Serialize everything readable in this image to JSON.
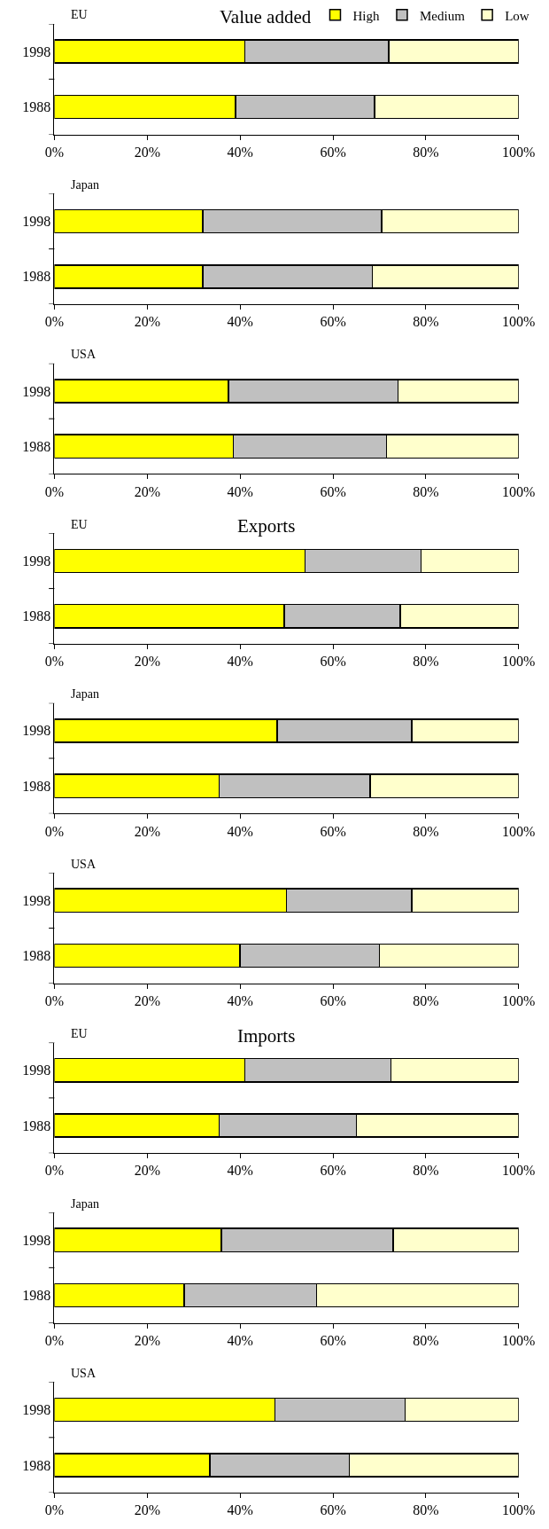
{
  "chart_data": [
    {
      "type": "bar",
      "orientation": "horizontal",
      "stacked": true,
      "title": "Value added",
      "subtitle": "EU",
      "categories": [
        "1998",
        "1988"
      ],
      "legend": "top right",
      "xlim": [
        0,
        100
      ],
      "xticks": [
        {
          "value": 0,
          "label": "0%"
        },
        {
          "value": 20,
          "label": "20%"
        },
        {
          "value": 40,
          "label": "40%"
        },
        {
          "value": 60,
          "label": "60%"
        },
        {
          "value": 80,
          "label": "80%"
        },
        {
          "value": 100,
          "label": "100%"
        }
      ],
      "series": [
        {
          "name": "High",
          "color": "#ffff00",
          "values": [
            41,
            39
          ]
        },
        {
          "name": "Medium",
          "color": "#c0c0c0",
          "values": [
            31,
            30
          ]
        },
        {
          "name": "Low",
          "color": "#ffffcc",
          "values": [
            28,
            31
          ]
        }
      ]
    },
    {
      "type": "bar",
      "orientation": "horizontal",
      "stacked": true,
      "subtitle": "Japan",
      "categories": [
        "1998",
        "1988"
      ],
      "xlim": [
        0,
        100
      ],
      "xticks": [
        {
          "value": 0,
          "label": "0%"
        },
        {
          "value": 20,
          "label": "20%"
        },
        {
          "value": 40,
          "label": "40%"
        },
        {
          "value": 60,
          "label": "60%"
        },
        {
          "value": 80,
          "label": "80%"
        },
        {
          "value": 100,
          "label": "100%"
        }
      ],
      "series": [
        {
          "color": "#ffff00",
          "values": [
            32,
            32
          ]
        },
        {
          "color": "#c0c0c0",
          "values": [
            38.5,
            36.5
          ]
        },
        {
          "color": "#ffffcc",
          "values": [
            29.5,
            31.5
          ]
        }
      ]
    },
    {
      "type": "bar",
      "orientation": "horizontal",
      "stacked": true,
      "subtitle": "USA",
      "categories": [
        "1998",
        "1988"
      ],
      "xlim": [
        0,
        100
      ],
      "xticks": [
        {
          "value": 0,
          "label": "0%"
        },
        {
          "value": 20,
          "label": "20%"
        },
        {
          "value": 40,
          "label": "40%"
        },
        {
          "value": 60,
          "label": "60%"
        },
        {
          "value": 80,
          "label": "80%"
        },
        {
          "value": 100,
          "label": "100%"
        }
      ],
      "series": [
        {
          "color": "#ffff00",
          "values": [
            37.5,
            38.5
          ]
        },
        {
          "color": "#c0c0c0",
          "values": [
            36.5,
            33
          ]
        },
        {
          "color": "#ffffcc",
          "values": [
            26,
            28.5
          ]
        }
      ]
    },
    {
      "type": "bar",
      "orientation": "horizontal",
      "stacked": true,
      "title": "Exports",
      "subtitle": "EU",
      "categories": [
        "1998",
        "1988"
      ],
      "xlim": [
        0,
        100
      ],
      "xticks": [
        {
          "value": 0,
          "label": "0%"
        },
        {
          "value": 20,
          "label": "20%"
        },
        {
          "value": 40,
          "label": "40%"
        },
        {
          "value": 60,
          "label": "60%"
        },
        {
          "value": 80,
          "label": "80%"
        },
        {
          "value": 100,
          "label": "100%"
        }
      ],
      "series": [
        {
          "color": "#ffff00",
          "values": [
            54,
            49.5
          ]
        },
        {
          "color": "#c0c0c0",
          "values": [
            25,
            25
          ]
        },
        {
          "color": "#ffffcc",
          "values": [
            21,
            25.5
          ]
        }
      ]
    },
    {
      "type": "bar",
      "orientation": "horizontal",
      "stacked": true,
      "subtitle": "Japan",
      "categories": [
        "1998",
        "1988"
      ],
      "xlim": [
        0,
        100
      ],
      "xticks": [
        {
          "value": 0,
          "label": "0%"
        },
        {
          "value": 20,
          "label": "20%"
        },
        {
          "value": 40,
          "label": "40%"
        },
        {
          "value": 60,
          "label": "60%"
        },
        {
          "value": 80,
          "label": "80%"
        },
        {
          "value": 100,
          "label": "100%"
        }
      ],
      "series": [
        {
          "color": "#ffff00",
          "values": [
            48,
            35.5
          ]
        },
        {
          "color": "#c0c0c0",
          "values": [
            29,
            32.5
          ]
        },
        {
          "color": "#ffffcc",
          "values": [
            23,
            32
          ]
        }
      ]
    },
    {
      "type": "bar",
      "orientation": "horizontal",
      "stacked": true,
      "subtitle": "USA",
      "categories": [
        "1998",
        "1988"
      ],
      "xlim": [
        0,
        100
      ],
      "xticks": [
        {
          "value": 0,
          "label": "0%"
        },
        {
          "value": 20,
          "label": "20%"
        },
        {
          "value": 40,
          "label": "40%"
        },
        {
          "value": 60,
          "label": "60%"
        },
        {
          "value": 80,
          "label": "80%"
        },
        {
          "value": 100,
          "label": "100%"
        }
      ],
      "series": [
        {
          "color": "#ffff00",
          "values": [
            50,
            40
          ]
        },
        {
          "color": "#c0c0c0",
          "values": [
            27,
            30
          ]
        },
        {
          "color": "#ffffcc",
          "values": [
            23,
            30
          ]
        }
      ]
    },
    {
      "type": "bar",
      "orientation": "horizontal",
      "stacked": true,
      "title": "Imports",
      "subtitle": "EU",
      "categories": [
        "1998",
        "1988"
      ],
      "xlim": [
        0,
        100
      ],
      "xticks": [
        {
          "value": 0,
          "label": "0%"
        },
        {
          "value": 20,
          "label": "20%"
        },
        {
          "value": 40,
          "label": "40%"
        },
        {
          "value": 60,
          "label": "60%"
        },
        {
          "value": 80,
          "label": "80%"
        },
        {
          "value": 100,
          "label": "100%"
        }
      ],
      "series": [
        {
          "color": "#ffff00",
          "values": [
            41,
            35.5
          ]
        },
        {
          "color": "#c0c0c0",
          "values": [
            31.5,
            29.5
          ]
        },
        {
          "color": "#ffffcc",
          "values": [
            27.5,
            35
          ]
        }
      ]
    },
    {
      "type": "bar",
      "orientation": "horizontal",
      "stacked": true,
      "subtitle": "Japan",
      "categories": [
        "1998",
        "1988"
      ],
      "xlim": [
        0,
        100
      ],
      "xticks": [
        {
          "value": 0,
          "label": "0%"
        },
        {
          "value": 20,
          "label": "20%"
        },
        {
          "value": 40,
          "label": "40%"
        },
        {
          "value": 60,
          "label": "60%"
        },
        {
          "value": 80,
          "label": "80%"
        },
        {
          "value": 100,
          "label": "100%"
        }
      ],
      "series": [
        {
          "color": "#ffff00",
          "values": [
            36,
            28
          ]
        },
        {
          "color": "#c0c0c0",
          "values": [
            37,
            28.5
          ]
        },
        {
          "color": "#ffffcc",
          "values": [
            27,
            43.5
          ]
        }
      ]
    },
    {
      "type": "bar",
      "orientation": "horizontal",
      "stacked": true,
      "subtitle": "USA",
      "categories": [
        "1998",
        "1988"
      ],
      "xlim": [
        0,
        100
      ],
      "xticks": [
        {
          "value": 0,
          "label": "0%"
        },
        {
          "value": 20,
          "label": "20%"
        },
        {
          "value": 40,
          "label": "40%"
        },
        {
          "value": 60,
          "label": "60%"
        },
        {
          "value": 80,
          "label": "80%"
        },
        {
          "value": 100,
          "label": "100%"
        }
      ],
      "series": [
        {
          "color": "#ffff00",
          "values": [
            47.5,
            33.5
          ]
        },
        {
          "color": "#c0c0c0",
          "values": [
            28,
            30
          ]
        },
        {
          "color": "#ffffcc",
          "values": [
            24.5,
            36.5
          ]
        }
      ]
    }
  ]
}
